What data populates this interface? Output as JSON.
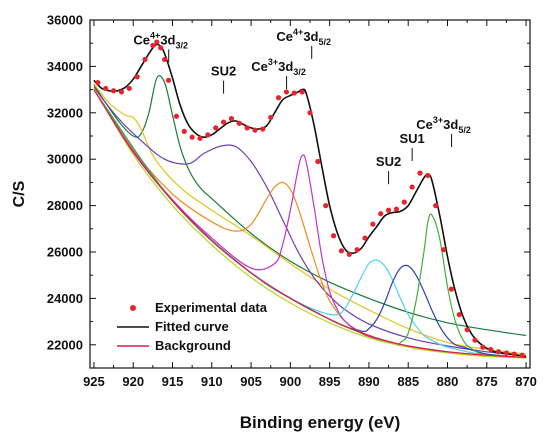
{
  "chart_data": {
    "type": "line",
    "xlabel": "Binding energy  (eV)",
    "ylabel": "C/S",
    "xlim": [
      925.5,
      869.5
    ],
    "ylim": [
      21000,
      36000
    ],
    "x_reversed": true,
    "grid": false,
    "legend_position": "bottom-left",
    "x_ticks": [
      925,
      920,
      915,
      910,
      905,
      900,
      895,
      890,
      885,
      880,
      875,
      870
    ],
    "y_ticks": [
      22000,
      24000,
      26000,
      28000,
      30000,
      32000,
      34000,
      36000
    ],
    "annotations": [
      {
        "base": "Ce",
        "sup": "4+",
        "mid": "3d",
        "sub": "3/2",
        "x": 916.5,
        "y": 34950
      },
      {
        "base": "SU2",
        "x": 908.5,
        "y": 33600
      },
      {
        "base": "Ce",
        "sup": "3+",
        "mid": "3d",
        "sub": "3/2",
        "x": 901.5,
        "y": 33800
      },
      {
        "base": "Ce",
        "sup": "4+",
        "mid": "3d",
        "sub": "5/2",
        "x": 898.3,
        "y": 35100
      },
      {
        "base": "SU2",
        "x": 887.5,
        "y": 29700
      },
      {
        "base": "SU1",
        "x": 884.5,
        "y": 30700
      },
      {
        "base": "Ce",
        "sup": "3+",
        "mid": "3d",
        "sub": "5/2",
        "x": 880.5,
        "y": 31300
      }
    ],
    "legend": [
      {
        "label": "Experimental data",
        "kind": "marker",
        "color": "#e8232c"
      },
      {
        "label": "Fitted curve",
        "kind": "line",
        "color": "#111111"
      },
      {
        "label": "Background",
        "kind": "line",
        "color": "#e31a4e"
      }
    ],
    "series": [
      {
        "name": "Experimental data",
        "kind": "scatter",
        "color": "#e8232c",
        "x": [
          924.5,
          923.5,
          922.5,
          921.5,
          920.5,
          919.5,
          918.5,
          917.5,
          917.0,
          916.5,
          916.0,
          915.5,
          914.5,
          913.5,
          912.5,
          911.5,
          910.5,
          909.5,
          908.5,
          907.5,
          906.5,
          905.5,
          904.5,
          903.5,
          902.5,
          901.5,
          900.5,
          899.5,
          898.5,
          897.5,
          896.5,
          895.5,
          894.5,
          893.5,
          892.5,
          891.5,
          890.5,
          889.5,
          888.5,
          887.5,
          886.5,
          885.5,
          884.5,
          883.5,
          882.5,
          881.5,
          880.5,
          879.5,
          878.5,
          877.5,
          876.5,
          875.5,
          874.5,
          873.5,
          872.5,
          871.5,
          870.5
        ],
        "y": [
          33300,
          33050,
          32950,
          32900,
          33050,
          33550,
          34300,
          34900,
          35050,
          34800,
          34300,
          33400,
          31850,
          31200,
          30950,
          30900,
          31050,
          31350,
          31600,
          31750,
          31550,
          31350,
          31250,
          31300,
          31800,
          32650,
          32900,
          32850,
          32900,
          32000,
          29900,
          28000,
          26700,
          26050,
          25900,
          26100,
          26600,
          27200,
          27650,
          27800,
          27850,
          28150,
          28800,
          29400,
          29300,
          28000,
          26100,
          24400,
          23300,
          22650,
          22200,
          21900,
          21800,
          21700,
          21650,
          21600,
          21550
        ]
      },
      {
        "name": "",
        "kind": "fit",
        "color": "#111111",
        "x": [
          925.0,
          924.0,
          923.0,
          922.0,
          921.0,
          920.0,
          919.0,
          918.0,
          917.5,
          917.0,
          916.5,
          916.0,
          915.0,
          914.0,
          913.0,
          912.0,
          911.0,
          910.0,
          909.0,
          908.0,
          907.0,
          906.0,
          905.0,
          904.0,
          903.0,
          902.0,
          901.0,
          900.0,
          899.0,
          898.5,
          898.0,
          897.0,
          896.0,
          895.0,
          894.0,
          893.0,
          892.0,
          891.0,
          890.0,
          889.0,
          888.0,
          887.0,
          886.0,
          885.0,
          884.0,
          883.0,
          882.5,
          882.0,
          881.0,
          880.0,
          879.0,
          878.0,
          877.0,
          876.0,
          875.0,
          874.0,
          873.0,
          872.0,
          871.0,
          870.0
        ],
        "y": [
          33400,
          33050,
          32950,
          32950,
          33100,
          33450,
          34000,
          34550,
          34800,
          34950,
          34850,
          34550,
          33500,
          32300,
          31500,
          31100,
          30950,
          31050,
          31300,
          31550,
          31650,
          31500,
          31350,
          31300,
          31450,
          32000,
          32550,
          32750,
          32900,
          33000,
          32850,
          31500,
          29700,
          28000,
          26800,
          26100,
          25950,
          26150,
          26650,
          27100,
          27550,
          27700,
          27750,
          28000,
          28600,
          29200,
          29350,
          29100,
          27600,
          25800,
          24300,
          23200,
          22500,
          22100,
          21850,
          21700,
          21650,
          21600,
          21550,
          21500
        ]
      },
      {
        "name": "",
        "kind": "background",
        "color": "#e31a4e",
        "x": [
          925,
          920,
          915,
          910,
          905,
          900,
          895,
          890,
          885,
          880,
          875,
          870
        ],
        "y": [
          33000,
          30300,
          28200,
          26500,
          25100,
          24000,
          23100,
          22400,
          21950,
          21700,
          21550,
          21450
        ]
      },
      {
        "name": "",
        "kind": "component",
        "color": "#1c7a3a",
        "x": [
          925,
          922,
          920,
          919,
          918,
          917,
          916,
          915,
          914,
          913,
          912,
          911,
          910,
          905,
          900,
          895,
          890,
          885,
          880,
          875,
          870
        ],
        "y": [
          33200,
          31700,
          31000,
          31100,
          32000,
          33500,
          33300,
          31900,
          30500,
          29600,
          29000,
          28600,
          28300,
          26800,
          25600,
          24700,
          24000,
          23400,
          22950,
          22650,
          22400
        ]
      },
      {
        "name": "",
        "kind": "component",
        "color": "#e8c21a",
        "x": [
          925,
          923,
          921,
          920,
          919,
          918,
          917,
          915,
          913,
          910,
          905,
          900,
          895,
          890,
          885,
          880,
          875,
          870
        ],
        "y": [
          33250,
          32400,
          31900,
          31800,
          31300,
          30500,
          29900,
          29100,
          28500,
          27800,
          26700,
          25500,
          24400,
          23500,
          22700,
          22100,
          21800,
          21600
        ]
      },
      {
        "name": "",
        "kind": "component",
        "color": "#6a3fb5",
        "x": [
          925,
          922,
          919,
          916,
          913,
          911,
          909,
          907,
          905,
          903,
          901,
          899,
          897,
          895,
          893,
          890,
          885,
          880,
          875,
          870
        ],
        "y": [
          33100,
          31800,
          30800,
          30000,
          29800,
          30250,
          30550,
          30550,
          29900,
          28800,
          27400,
          26000,
          24900,
          24100,
          23500,
          22900,
          22300,
          21950,
          21700,
          21500
        ]
      },
      {
        "name": "",
        "kind": "component",
        "color": "#f08a24",
        "x": [
          925,
          920,
          915,
          910,
          907,
          905,
          903,
          902,
          901,
          900,
          899,
          898,
          897,
          896,
          895,
          893,
          890,
          885,
          880,
          875,
          870
        ],
        "y": [
          33000,
          30400,
          28500,
          27300,
          26900,
          27200,
          28300,
          28800,
          29000,
          28700,
          27900,
          26800,
          25700,
          24700,
          23900,
          23000,
          22400,
          21950,
          21700,
          21550,
          21450
        ]
      },
      {
        "name": "",
        "kind": "component",
        "color": "#c233c2",
        "x": [
          925,
          920,
          915,
          910,
          905,
          902,
          901,
          900,
          899,
          898.5,
          898,
          897,
          896,
          895,
          894,
          893,
          891,
          888,
          885,
          880,
          875,
          870
        ],
        "y": [
          33000,
          30350,
          28250,
          26600,
          25300,
          25500,
          26300,
          27800,
          29600,
          30150,
          29900,
          28000,
          25800,
          24300,
          23500,
          23000,
          22500,
          22150,
          21950,
          21700,
          21550,
          21450
        ]
      },
      {
        "name": "",
        "kind": "component",
        "color": "#4fd4e8",
        "x": [
          925,
          915,
          905,
          900,
          896,
          894,
          893,
          892,
          891,
          890,
          889,
          888,
          887,
          886,
          885,
          884,
          883,
          882,
          880,
          875,
          870
        ],
        "y": [
          33000,
          28200,
          25100,
          24000,
          23400,
          23300,
          23600,
          24200,
          24900,
          25500,
          25650,
          25400,
          24800,
          24000,
          23300,
          22800,
          22400,
          22200,
          21900,
          21550,
          21450
        ]
      },
      {
        "name": "",
        "kind": "component",
        "color": "#2f3fb3",
        "x": [
          925,
          915,
          905,
          895,
          891,
          890,
          889,
          888,
          887,
          886,
          885,
          884,
          883,
          882,
          881,
          880,
          879,
          878,
          875,
          870
        ],
        "y": [
          33000,
          28200,
          25100,
          23100,
          22600,
          22700,
          23100,
          23800,
          24700,
          25300,
          25400,
          25000,
          24300,
          23500,
          22800,
          22300,
          22000,
          21900,
          21600,
          21450
        ]
      },
      {
        "name": "",
        "kind": "component",
        "color": "#3fae3f",
        "x": [
          925,
          915,
          905,
          895,
          887,
          886,
          885,
          884,
          883,
          882.5,
          882,
          881,
          880,
          879,
          878,
          877,
          875,
          870
        ],
        "y": [
          33000,
          28200,
          25100,
          23100,
          22050,
          22100,
          22500,
          23900,
          26000,
          27300,
          27600,
          26600,
          24500,
          23000,
          22200,
          21850,
          21550,
          21450
        ]
      },
      {
        "name": "",
        "kind": "component",
        "color": "#b5d81e",
        "x": [
          925,
          920,
          915,
          910,
          905,
          900,
          895,
          890,
          885,
          880,
          875,
          870
        ],
        "y": [
          33050,
          30200,
          28000,
          26300,
          24900,
          23800,
          22950,
          22300,
          21900,
          21650,
          21500,
          21430
        ]
      }
    ]
  }
}
